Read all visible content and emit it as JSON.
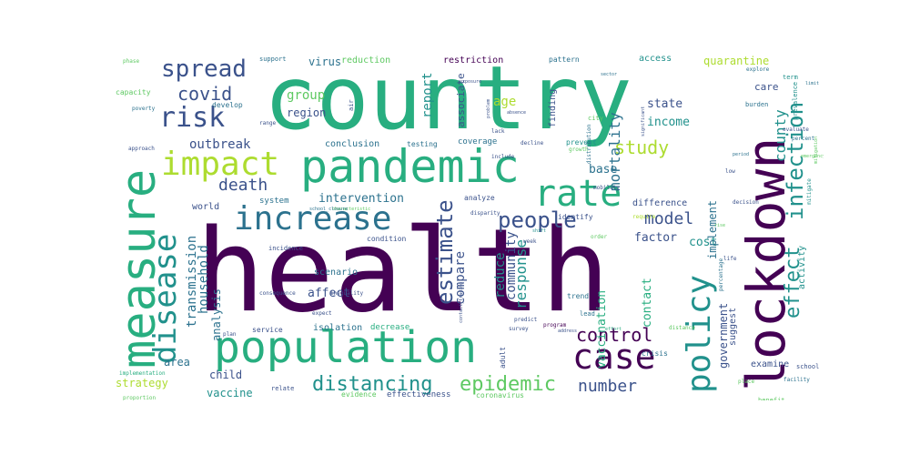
{
  "words": {
    "health": "health",
    "country": "country",
    "pandemic": "pandemic",
    "population": "population",
    "measure": "measure",
    "lockdown": "lockdown",
    "increase": "increase",
    "rate": "rate",
    "impact": "impact",
    "policy": "policy",
    "disease": "disease",
    "case": "case",
    "spread": "spread",
    "risk": "risk",
    "people": "people",
    "covid": "covid",
    "infection": "infection",
    "estimate": "estimate",
    "control": "control",
    "epidemic": "epidemic",
    "distancing": "distancing",
    "effect": "effect",
    "study": "study",
    "model": "model",
    "death": "death",
    "number": "number",
    "county": "county",
    "mortality": "mortality",
    "group": "group",
    "report": "report",
    "outbreak": "outbreak",
    "intervention": "intervention",
    "response": "response",
    "reduce": "reduce",
    "community": "community",
    "compare": "compare",
    "vaccination": "vaccination",
    "transmission": "transmission",
    "household": "household",
    "income": "income",
    "state": "state",
    "factor": "factor",
    "cost": "cost",
    "base": "base",
    "age": "age",
    "implement": "implement",
    "government": "government",
    "contact": "contact",
    "analysis": "analysis",
    "affect": "affect",
    "vaccine": "vaccine",
    "child": "child",
    "strategy": "strategy",
    "area": "area",
    "quarantine": "quarantine",
    "virus": "virus",
    "reduction": "reduction",
    "restriction": "restriction",
    "associate": "associate",
    "region": "region",
    "conclusion": "conclusion",
    "testing": "testing",
    "coverage": "coverage",
    "finding": "finding",
    "world": "world",
    "system": "system",
    "scenario": "scenario",
    "isolation": "isolation",
    "decrease": "decrease",
    "service": "service",
    "difference": "difference",
    "identify": "identify",
    "activity": "activity",
    "suggest": "suggest",
    "examine": "examine",
    "care": "care",
    "access": "access",
    "support": "support",
    "pattern": "pattern",
    "effectiveness": "effectiveness",
    "evidence": "evidence",
    "relate": "relate",
    "coronavirus": "coronavirus",
    "adult": "adult",
    "crisis": "crisis",
    "lead": "lead",
    "trend": "trend",
    "prevent": "prevent",
    "decline": "decline",
    "city": "city",
    "develop": "develop",
    "capacity": "capacity",
    "burden": "burden",
    "prevalence": "prevalence",
    "term": "term",
    "benefit": "benefit",
    "school": "school",
    "facility": "facility",
    "condition": "condition",
    "incidence": "incidence",
    "analyze": "analyze",
    "disparity": "disparity",
    "mobility": "mobility",
    "range": "range",
    "poverty": "poverty",
    "approach": "approach",
    "decision": "decision",
    "plan": "plan",
    "proportion": "proportion",
    "implementation": "implementation",
    "expect": "expect",
    "consequence": "consequence",
    "inequality": "inequality",
    "growth": "growth",
    "survey": "survey",
    "predict": "predict",
    "place": "place",
    "order": "order",
    "phase": "phase",
    "explore": "explore",
    "require": "require",
    "percent": "percent",
    "evaluate": "evaluate",
    "mitigate": "mitigate",
    "percentage": "percentage",
    "distribution": "distribution",
    "distance": "distance",
    "program": "program",
    "week": "week",
    "life": "life",
    "air": "air",
    "lack": "lack",
    "low": "low",
    "include": "include",
    "problem": "problem",
    "characteristic": "characteristic",
    "school_closure": "school_closure",
    "contact_tracing": "contact_tracing",
    "significant": "significant",
    "absence": "absence",
    "mitigation": "mitigation",
    "emergency": "emergency",
    "rise": "rise",
    "shift": "shift",
    "exposure": "exposure",
    "sector": "sector",
    "period": "period",
    "effort": "effort",
    "address": "address",
    "limit": "limit"
  },
  "colors": [
    "#440154",
    "#3b528b",
    "#2c728e",
    "#21918c",
    "#28ae80",
    "#5ec962",
    "#addc30",
    "#fde725"
  ]
}
